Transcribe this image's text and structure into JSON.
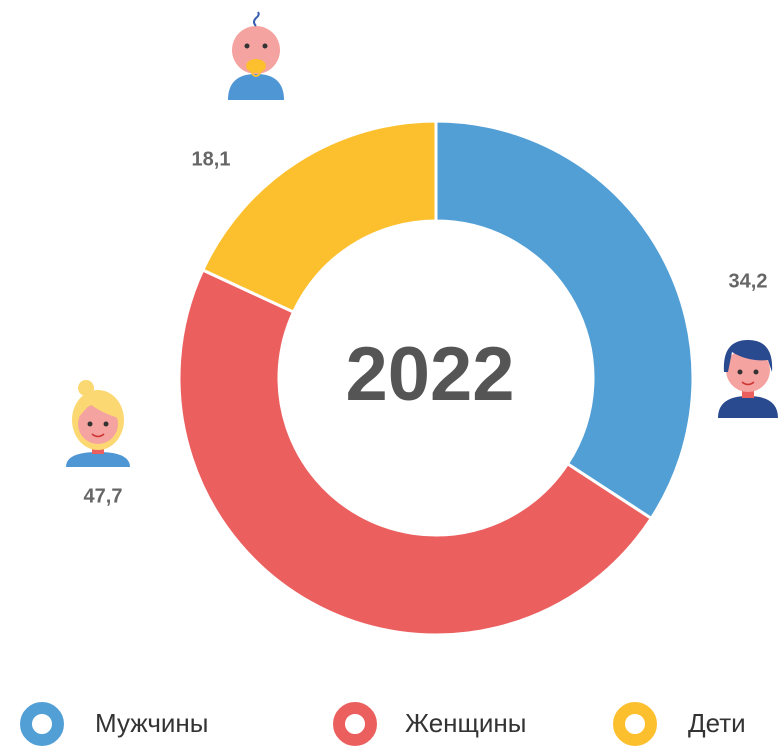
{
  "chart_data": {
    "type": "donut",
    "title": "2022",
    "categories": [
      "Мужчины",
      "Женщины",
      "Дети"
    ],
    "values": [
      34.2,
      47.7,
      18.1
    ],
    "value_labels": [
      "34,2",
      "47,7",
      "18,1"
    ],
    "colors": [
      "#529fd6",
      "#ec5f5f",
      "#fcc02e"
    ]
  }
}
